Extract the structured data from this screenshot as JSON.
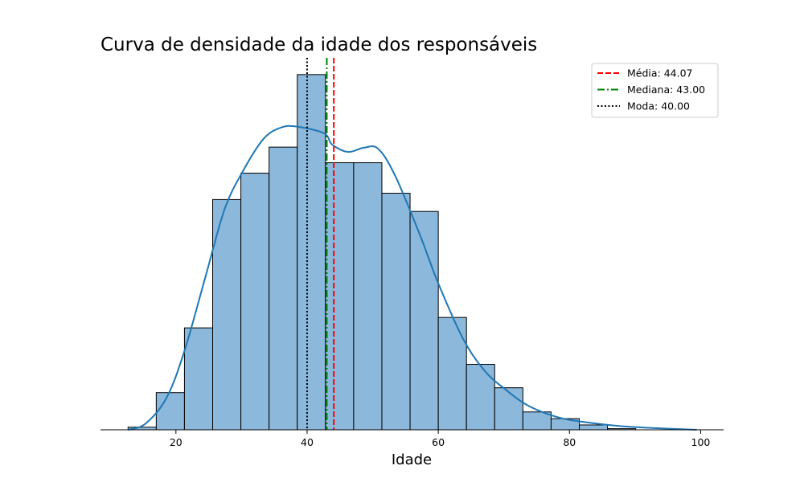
{
  "chart_data": {
    "type": "bar",
    "title": "Curva de densidade da idade dos responsáveis",
    "xlabel": "Idade",
    "ylabel": "",
    "xlim": [
      8.5,
      103.5
    ],
    "ylim": [
      0,
      1.0
    ],
    "x_ticks": [
      20,
      40,
      60,
      80,
      100
    ],
    "bins": [
      {
        "x0": 12.7,
        "x1": 17.0,
        "value": 0.007
      },
      {
        "x0": 17.0,
        "x1": 21.3,
        "value": 0.1
      },
      {
        "x0": 21.3,
        "x1": 25.6,
        "value": 0.274
      },
      {
        "x0": 25.6,
        "x1": 29.9,
        "value": 0.619
      },
      {
        "x0": 29.9,
        "x1": 34.2,
        "value": 0.69
      },
      {
        "x0": 34.2,
        "x1": 38.5,
        "value": 0.76
      },
      {
        "x0": 38.5,
        "x1": 42.8,
        "value": 0.955
      },
      {
        "x0": 42.8,
        "x1": 47.1,
        "value": 0.718
      },
      {
        "x0": 47.1,
        "x1": 51.4,
        "value": 0.718
      },
      {
        "x0": 51.4,
        "x1": 55.7,
        "value": 0.636
      },
      {
        "x0": 55.7,
        "x1": 60.0,
        "value": 0.587
      },
      {
        "x0": 60.0,
        "x1": 64.3,
        "value": 0.302
      },
      {
        "x0": 64.3,
        "x1": 68.6,
        "value": 0.176
      },
      {
        "x0": 68.6,
        "x1": 72.9,
        "value": 0.113
      },
      {
        "x0": 72.9,
        "x1": 77.2,
        "value": 0.048
      },
      {
        "x0": 77.2,
        "x1": 81.5,
        "value": 0.03
      },
      {
        "x0": 81.5,
        "x1": 85.8,
        "value": 0.013
      },
      {
        "x0": 85.8,
        "x1": 90.1,
        "value": 0.003
      }
    ],
    "kde": {
      "x": [
        12.7,
        15.4,
        18.6,
        21.3,
        24.5,
        27.4,
        30.2,
        33.4,
        36.1,
        38.5,
        42.6,
        43.8,
        46.2,
        48.6,
        50.8,
        53.4,
        57.2,
        59.9,
        63.8,
        67.1,
        70.2,
        73.8,
        78.6,
        84.0,
        89.2,
        95.0,
        99.4
      ],
      "y": [
        0.0,
        0.017,
        0.087,
        0.212,
        0.411,
        0.592,
        0.695,
        0.783,
        0.813,
        0.815,
        0.797,
        0.767,
        0.747,
        0.758,
        0.756,
        0.684,
        0.524,
        0.398,
        0.244,
        0.158,
        0.109,
        0.064,
        0.032,
        0.017,
        0.008,
        0.003,
        0.0
      ]
    },
    "bar_color": "#8cb8db",
    "bar_edge_color": "#000000",
    "kde_color": "#1f77b4",
    "ref_lines": [
      {
        "label": "Média: 44.07",
        "value": 44.07,
        "color": "#ff0000",
        "style": "dashed"
      },
      {
        "label": "Mediana: 43.00",
        "value": 43.0,
        "color": "#008000",
        "style": "dashdot"
      },
      {
        "label": "Moda: 40.00",
        "value": 40.0,
        "color": "#000000",
        "style": "dotted"
      }
    ],
    "legend_position": "top-right",
    "grid": false
  }
}
